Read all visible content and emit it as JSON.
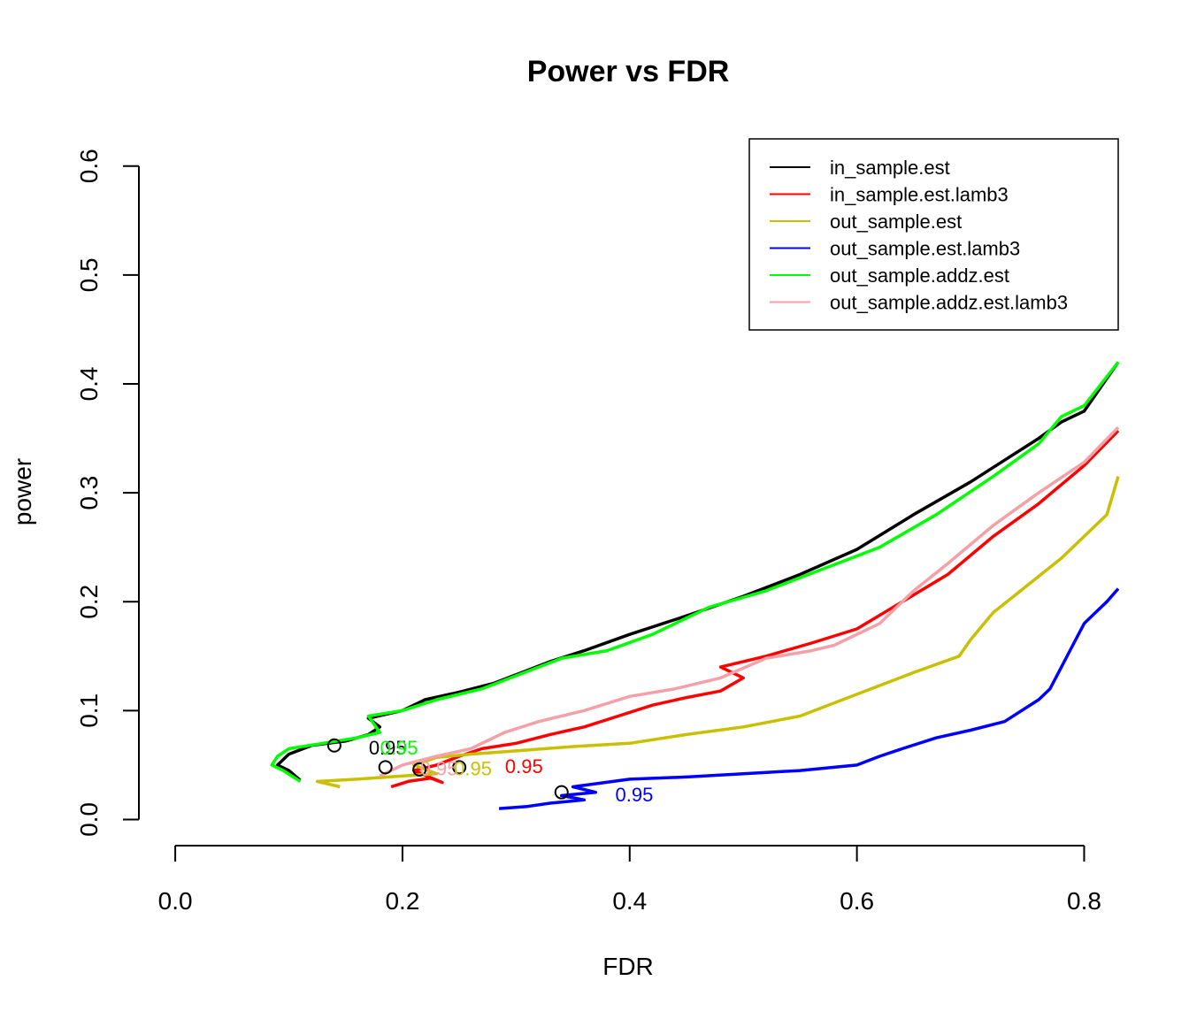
{
  "chart_data": {
    "type": "line",
    "title": "Power vs FDR",
    "xlabel": "FDR",
    "ylabel": "power",
    "xlim": [
      -0.032,
      0.83
    ],
    "ylim": [
      -0.024,
      0.625
    ],
    "xticks": [
      0.0,
      0.2,
      0.4,
      0.6,
      0.8
    ],
    "xtick_labels": [
      "0.0",
      "0.2",
      "0.4",
      "0.6",
      "0.8"
    ],
    "yticks": [
      0.0,
      0.1,
      0.2,
      0.3,
      0.4,
      0.5,
      0.6
    ],
    "ytick_labels": [
      "0.0",
      "0.1",
      "0.2",
      "0.3",
      "0.4",
      "0.5",
      "0.6"
    ],
    "grid": false,
    "legend_position": "top-right",
    "series": [
      {
        "name": "in_sample.est",
        "color": "#000000",
        "x": [
          0.11,
          0.1,
          0.09,
          0.1,
          0.12,
          0.15,
          0.17,
          0.18,
          0.17,
          0.2,
          0.22,
          0.25,
          0.28,
          0.3,
          0.33,
          0.36,
          0.4,
          0.45,
          0.5,
          0.55,
          0.6,
          0.65,
          0.7,
          0.73,
          0.76,
          0.78,
          0.8,
          0.82,
          0.83
        ],
        "y": [
          0.036,
          0.045,
          0.05,
          0.06,
          0.068,
          0.072,
          0.078,
          0.085,
          0.093,
          0.1,
          0.11,
          0.117,
          0.125,
          0.133,
          0.145,
          0.155,
          0.17,
          0.187,
          0.205,
          0.225,
          0.248,
          0.28,
          0.31,
          0.33,
          0.35,
          0.365,
          0.375,
          0.405,
          0.42
        ]
      },
      {
        "name": "in_sample.est.lamb3",
        "color": "#ff0000",
        "x": [
          0.19,
          0.205,
          0.225,
          0.235,
          0.21,
          0.23,
          0.25,
          0.27,
          0.3,
          0.33,
          0.36,
          0.39,
          0.42,
          0.45,
          0.48,
          0.5,
          0.48,
          0.52,
          0.56,
          0.6,
          0.64,
          0.68,
          0.72,
          0.76,
          0.8,
          0.83
        ],
        "y": [
          0.03,
          0.035,
          0.038,
          0.034,
          0.045,
          0.05,
          0.058,
          0.065,
          0.07,
          0.078,
          0.085,
          0.095,
          0.105,
          0.112,
          0.118,
          0.13,
          0.14,
          0.15,
          0.162,
          0.175,
          0.2,
          0.225,
          0.26,
          0.29,
          0.325,
          0.357
        ]
      },
      {
        "name": "out_sample.est",
        "color": "#c8c000",
        "x": [
          0.145,
          0.125,
          0.16,
          0.2,
          0.23,
          0.21,
          0.23,
          0.26,
          0.3,
          0.35,
          0.4,
          0.45,
          0.5,
          0.55,
          0.6,
          0.65,
          0.69,
          0.7,
          0.72,
          0.75,
          0.78,
          0.8,
          0.82,
          0.83
        ],
        "y": [
          0.03,
          0.035,
          0.037,
          0.04,
          0.042,
          0.05,
          0.057,
          0.06,
          0.063,
          0.067,
          0.07,
          0.078,
          0.085,
          0.095,
          0.115,
          0.135,
          0.15,
          0.165,
          0.19,
          0.215,
          0.24,
          0.26,
          0.28,
          0.315
        ]
      },
      {
        "name": "out_sample.est.lamb3",
        "color": "#0000ff",
        "x": [
          0.285,
          0.31,
          0.33,
          0.36,
          0.34,
          0.37,
          0.35,
          0.4,
          0.45,
          0.5,
          0.55,
          0.6,
          0.62,
          0.64,
          0.67,
          0.7,
          0.73,
          0.76,
          0.77,
          0.78,
          0.79,
          0.8,
          0.81,
          0.82,
          0.83
        ],
        "y": [
          0.01,
          0.012,
          0.015,
          0.018,
          0.022,
          0.025,
          0.03,
          0.037,
          0.039,
          0.042,
          0.045,
          0.05,
          0.058,
          0.065,
          0.075,
          0.082,
          0.09,
          0.11,
          0.12,
          0.14,
          0.16,
          0.18,
          0.19,
          0.2,
          0.212
        ]
      },
      {
        "name": "out_sample.addz.est",
        "color": "#00ff00",
        "x": [
          0.11,
          0.095,
          0.085,
          0.09,
          0.1,
          0.13,
          0.16,
          0.18,
          0.17,
          0.2,
          0.23,
          0.27,
          0.3,
          0.34,
          0.38,
          0.42,
          0.47,
          0.52,
          0.57,
          0.62,
          0.67,
          0.72,
          0.76,
          0.78,
          0.8,
          0.83
        ],
        "y": [
          0.035,
          0.045,
          0.05,
          0.058,
          0.065,
          0.07,
          0.075,
          0.08,
          0.095,
          0.1,
          0.11,
          0.12,
          0.132,
          0.148,
          0.155,
          0.17,
          0.195,
          0.21,
          0.23,
          0.25,
          0.28,
          0.315,
          0.345,
          0.37,
          0.38,
          0.42
        ]
      },
      {
        "name": "out_sample.addz.est.lamb3",
        "color": "#f4a0a8",
        "x": [
          0.18,
          0.2,
          0.23,
          0.26,
          0.29,
          0.32,
          0.36,
          0.4,
          0.44,
          0.48,
          0.52,
          0.56,
          0.58,
          0.6,
          0.62,
          0.65,
          0.68,
          0.72,
          0.76,
          0.8,
          0.83
        ],
        "y": [
          0.04,
          0.05,
          0.058,
          0.065,
          0.08,
          0.09,
          0.1,
          0.113,
          0.12,
          0.13,
          0.148,
          0.155,
          0.16,
          0.17,
          0.18,
          0.21,
          0.235,
          0.27,
          0.3,
          0.328,
          0.36
        ]
      }
    ],
    "markers": [
      {
        "x": 0.14,
        "y": 0.068,
        "color": "#000000"
      },
      {
        "x": 0.185,
        "y": 0.048,
        "color": "#000000"
      },
      {
        "x": 0.215,
        "y": 0.046,
        "color": "#000000"
      },
      {
        "x": 0.25,
        "y": 0.048,
        "color": "#000000"
      },
      {
        "x": 0.34,
        "y": 0.025,
        "color": "#000000"
      }
    ],
    "annotations": [
      {
        "x": 0.187,
        "y": 0.066,
        "text": "0.95",
        "color": "#000000"
      },
      {
        "x": 0.197,
        "y": 0.066,
        "text": "0.95",
        "color": "#00ff00"
      },
      {
        "x": 0.232,
        "y": 0.047,
        "text": "0.95",
        "color": "#f4a0a8"
      },
      {
        "x": 0.262,
        "y": 0.047,
        "text": "0.95",
        "color": "#c8c000"
      },
      {
        "x": 0.307,
        "y": 0.049,
        "text": "0.95",
        "color": "#ff0000"
      },
      {
        "x": 0.404,
        "y": 0.023,
        "text": "0.95",
        "color": "#0000ff"
      }
    ]
  }
}
